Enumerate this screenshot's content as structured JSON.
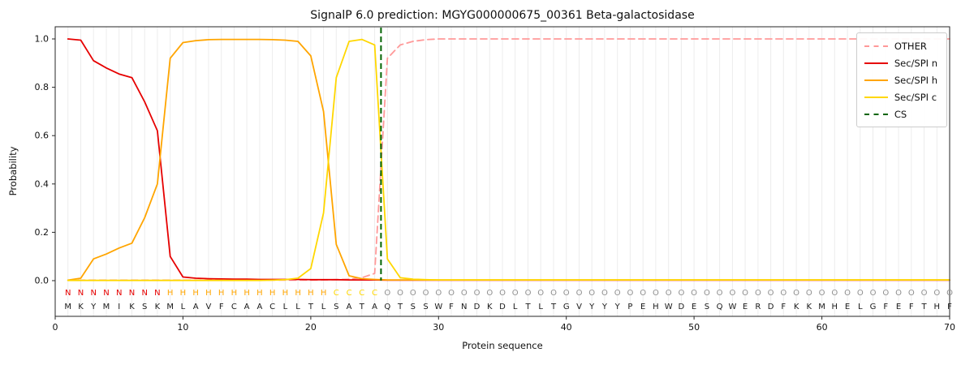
{
  "legend": [
    {
      "label": "OTHER",
      "color": "#ff9999",
      "dashed": true
    },
    {
      "label": "Sec/SPI n",
      "color": "#e60000",
      "dashed": false
    },
    {
      "label": "Sec/SPI h",
      "color": "#ffa500",
      "dashed": false
    },
    {
      "label": "Sec/SPI c",
      "color": "#ffd700",
      "dashed": false
    },
    {
      "label": "CS",
      "color": "#006400",
      "dashed": true
    }
  ],
  "chart_data": {
    "type": "line",
    "title": "SignalP 6.0 prediction: MGYG000000675_00361 Beta-galactosidase",
    "xlabel": "Protein sequence",
    "ylabel": "Probability",
    "xlim": [
      0,
      70
    ],
    "ylim": [
      0,
      1.0
    ],
    "xticks": [
      0,
      10,
      20,
      30,
      40,
      50,
      60,
      70
    ],
    "yticks": [
      0.0,
      0.2,
      0.4,
      0.6,
      0.8,
      1.0
    ],
    "ytick_labels": [
      "0.0",
      "0.2",
      "0.4",
      "0.6",
      "0.8",
      "1.0"
    ],
    "grid": "vertical-per-residue",
    "legend_position": "upper right",
    "cs_position": 25.5,
    "sequence": "MKYMIKSKMLAVFCAACLLTLSATAQTSSWFNDKDLTLTGVYYYPEHWDESQWERDFKKMHELGFEFTHF",
    "region_labels": "NNNNNNNNHHHHHHHHHHHHHCCCCOOOOOOOOOOOOOOOOOOOOOOOOOOOOOOOOOOOOOOOOOOOOO",
    "label_colors": {
      "N": "#e60000",
      "H": "#ffa500",
      "C": "#ffd700",
      "O": "#909090"
    },
    "colors": {
      "grid": "#ececec",
      "axis": "#262626",
      "cs": "#006400",
      "sequence_text": "#1a1a1a"
    },
    "series": [
      {
        "name": "OTHER",
        "color": "#ff9999",
        "style": "dashed",
        "values": [
          0.002,
          0.002,
          0.002,
          0.002,
          0.002,
          0.002,
          0.002,
          0.002,
          0.002,
          0.002,
          0.002,
          0.002,
          0.002,
          0.002,
          0.002,
          0.002,
          0.002,
          0.002,
          0.002,
          0.002,
          0.003,
          0.004,
          0.006,
          0.012,
          0.03,
          0.92,
          0.975,
          0.99,
          0.997,
          1.0,
          1.0,
          1.0,
          1.0,
          1.0,
          1.0,
          1.0,
          1.0,
          1.0,
          1.0,
          1.0,
          1.0,
          1.0,
          1.0,
          1.0,
          1.0,
          1.0,
          1.0,
          1.0,
          1.0,
          1.0,
          1.0,
          1.0,
          1.0,
          1.0,
          1.0,
          1.0,
          1.0,
          1.0,
          1.0,
          1.0,
          1.0,
          1.0,
          1.0,
          1.0,
          1.0,
          1.0,
          1.0,
          1.0,
          1.0,
          1.0
        ]
      },
      {
        "name": "Sec/SPI n",
        "color": "#e60000",
        "style": "solid",
        "values": [
          1.0,
          0.995,
          0.91,
          0.88,
          0.855,
          0.84,
          0.74,
          0.62,
          0.1,
          0.015,
          0.01,
          0.008,
          0.007,
          0.006,
          0.006,
          0.005,
          0.005,
          0.005,
          0.005,
          0.004,
          0.004,
          0.004,
          0.003,
          0.003,
          0.003,
          0.002,
          0.002,
          0.002,
          0.002,
          0.002,
          0.002,
          0.002,
          0.002,
          0.002,
          0.002,
          0.002,
          0.002,
          0.002,
          0.002,
          0.002,
          0.002,
          0.002,
          0.002,
          0.002,
          0.002,
          0.002,
          0.002,
          0.002,
          0.002,
          0.002,
          0.002,
          0.002,
          0.002,
          0.002,
          0.002,
          0.002,
          0.002,
          0.002,
          0.002,
          0.002,
          0.002,
          0.002,
          0.002,
          0.002,
          0.002,
          0.002,
          0.002,
          0.002,
          0.002,
          0.002
        ]
      },
      {
        "name": "Sec/SPI h",
        "color": "#ffa500",
        "style": "solid",
        "values": [
          0.002,
          0.01,
          0.09,
          0.11,
          0.135,
          0.155,
          0.26,
          0.4,
          0.92,
          0.985,
          0.993,
          0.997,
          0.998,
          0.998,
          0.998,
          0.998,
          0.997,
          0.995,
          0.99,
          0.93,
          0.7,
          0.15,
          0.02,
          0.008,
          0.005,
          0.003,
          0.003,
          0.003,
          0.003,
          0.003,
          0.003,
          0.003,
          0.003,
          0.003,
          0.003,
          0.003,
          0.003,
          0.003,
          0.003,
          0.003,
          0.003,
          0.003,
          0.003,
          0.003,
          0.003,
          0.003,
          0.003,
          0.003,
          0.003,
          0.003,
          0.003,
          0.003,
          0.003,
          0.003,
          0.003,
          0.003,
          0.003,
          0.003,
          0.003,
          0.003,
          0.003,
          0.003,
          0.003,
          0.003,
          0.003,
          0.003,
          0.003,
          0.003,
          0.003,
          0.003
        ]
      },
      {
        "name": "Sec/SPI c",
        "color": "#ffd700",
        "style": "solid",
        "values": [
          0.001,
          0.001,
          0.001,
          0.001,
          0.001,
          0.001,
          0.001,
          0.001,
          0.001,
          0.001,
          0.001,
          0.001,
          0.001,
          0.001,
          0.001,
          0.001,
          0.002,
          0.004,
          0.01,
          0.05,
          0.28,
          0.84,
          0.99,
          0.998,
          0.975,
          0.09,
          0.012,
          0.006,
          0.004,
          0.003,
          0.003,
          0.003,
          0.003,
          0.003,
          0.003,
          0.003,
          0.003,
          0.003,
          0.003,
          0.003,
          0.003,
          0.003,
          0.003,
          0.003,
          0.003,
          0.003,
          0.003,
          0.003,
          0.003,
          0.003,
          0.003,
          0.003,
          0.003,
          0.003,
          0.003,
          0.003,
          0.003,
          0.003,
          0.003,
          0.003,
          0.003,
          0.003,
          0.003,
          0.003,
          0.003,
          0.003,
          0.003,
          0.003,
          0.003,
          0.003
        ]
      }
    ]
  }
}
